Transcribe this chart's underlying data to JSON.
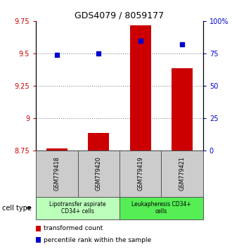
{
  "title": "GDS4079 / 8059177",
  "samples": [
    "GSM779418",
    "GSM779420",
    "GSM779419",
    "GSM779421"
  ],
  "transformed_counts": [
    8.765,
    8.885,
    9.72,
    9.385
  ],
  "percentile_ranks": [
    74,
    75,
    85,
    82
  ],
  "ylim_left": [
    8.75,
    9.75
  ],
  "ylim_right": [
    0,
    100
  ],
  "yticks_left": [
    8.75,
    9.0,
    9.25,
    9.5,
    9.75
  ],
  "yticks_right": [
    0,
    25,
    50,
    75,
    100
  ],
  "ytick_labels_left": [
    "8.75",
    "9",
    "9.25",
    "9.5",
    "9.75"
  ],
  "ytick_labels_right": [
    "0",
    "25",
    "50",
    "75",
    "100%"
  ],
  "bar_color": "#cc0000",
  "dot_color": "#0000cc",
  "bar_width": 0.5,
  "group1_label": "Lipotransfer aspirate\nCD34+ cells",
  "group2_label": "Leukapheresis CD34+\ncells",
  "group1_bg": "#bbffbb",
  "group2_bg": "#55ee55",
  "sample_bg": "#cccccc",
  "cell_type_label": "cell type",
  "legend_bar_label": "transformed count",
  "legend_dot_label": "percentile rank within the sample",
  "grid_yticks": [
    9.0,
    9.25,
    9.5
  ]
}
